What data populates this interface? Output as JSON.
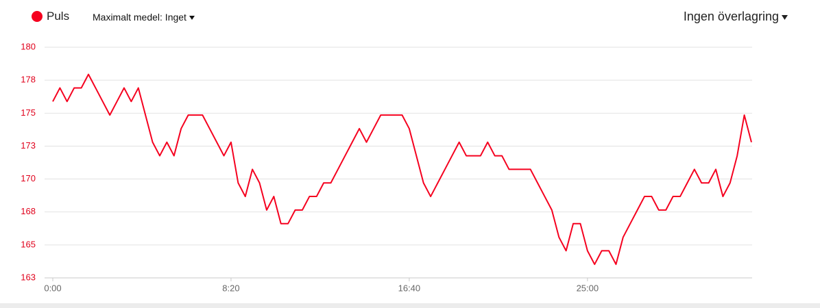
{
  "chart_data": {
    "type": "line",
    "maximum_average": "Maximalt medel: Inget",
    "overlay": "Ingen överlagring",
    "series": [
      {
        "name": "Puls",
        "color": "#f5001f",
        "values": [
          176,
          177,
          176,
          177,
          177,
          178,
          177,
          176,
          175,
          176,
          177,
          176,
          177,
          175,
          173,
          172,
          173,
          172,
          174,
          175,
          175,
          175,
          174,
          173,
          172,
          173,
          170,
          169,
          171,
          170,
          168,
          169,
          167,
          167,
          168,
          168,
          169,
          169,
          170,
          170,
          171,
          172,
          173,
          174,
          173,
          174,
          175,
          175,
          175,
          175,
          174,
          172,
          170,
          169,
          170,
          171,
          172,
          173,
          172,
          172,
          172,
          173,
          172,
          172,
          171,
          171,
          171,
          171,
          170,
          169,
          168,
          166,
          165,
          167,
          167,
          165,
          164,
          165,
          165,
          164,
          166,
          167,
          168,
          169,
          169,
          168,
          168,
          169,
          169,
          170,
          171,
          170,
          170,
          171,
          169,
          170,
          172,
          175,
          173
        ]
      }
    ],
    "x": [
      0,
      20,
      40,
      60,
      80,
      100,
      120,
      140,
      160,
      180,
      200,
      220,
      240,
      260,
      280,
      300,
      320,
      340,
      360,
      380,
      400,
      420,
      440,
      460,
      480,
      500,
      520,
      540,
      560,
      580,
      600,
      620,
      640,
      660,
      680,
      700,
      720,
      740,
      760,
      780,
      800,
      820,
      840,
      860,
      880,
      900,
      920,
      940,
      960,
      980,
      1000,
      1020,
      1040,
      1060,
      1080,
      1100,
      1120,
      1140,
      1160,
      1180,
      1200,
      1220,
      1240,
      1260,
      1280,
      1300,
      1320,
      1340,
      1360,
      1380,
      1400,
      1420,
      1440,
      1460,
      1480,
      1500,
      1520,
      1540,
      1560,
      1580,
      1600,
      1620,
      1640,
      1660,
      1680,
      1700,
      1720,
      1740,
      1760,
      1780,
      1800,
      1820,
      1840,
      1860,
      1880,
      1900,
      1920,
      1940,
      1960
    ],
    "xlim": [
      0,
      1960
    ],
    "xticks": [
      {
        "value": 0,
        "label": "0:00"
      },
      {
        "value": 500,
        "label": "8:20"
      },
      {
        "value": 1000,
        "label": "16:40"
      },
      {
        "value": 1500,
        "label": "25:00"
      }
    ],
    "ylim": [
      163,
      180
    ],
    "yticks": [
      163,
      {
        "value": 165.43,
        "label": "165"
      },
      {
        "value": 167.86,
        "label": "168"
      },
      {
        "value": 170.29,
        "label": "170"
      },
      {
        "value": 172.71,
        "label": "173"
      },
      {
        "value": 175.14,
        "label": "175"
      },
      {
        "value": 177.57,
        "label": "178"
      },
      180
    ],
    "grid": true,
    "tick_label_color": "#e0001b"
  }
}
